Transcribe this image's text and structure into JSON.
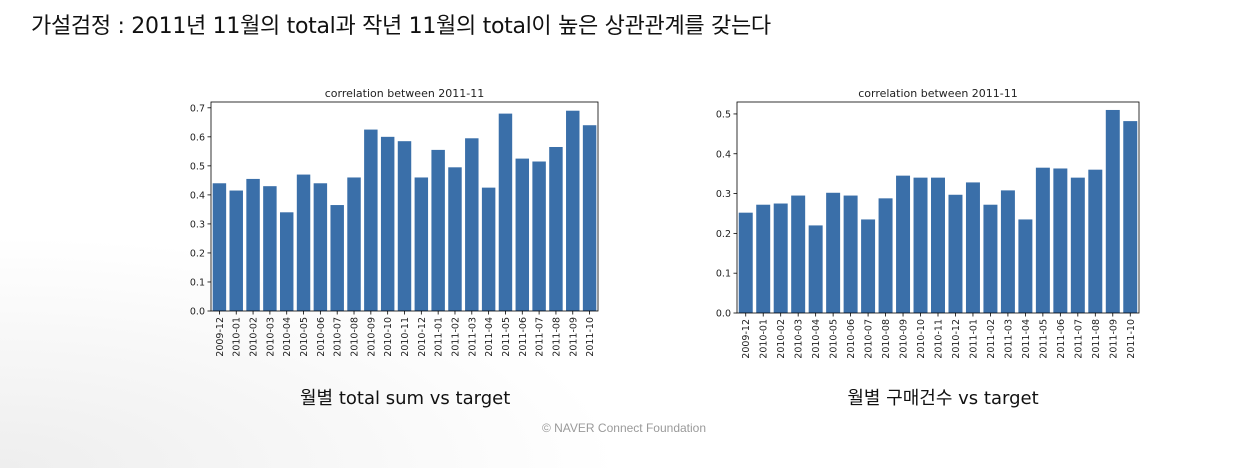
{
  "slide": {
    "heading": "가설검정 : 2011년 11월의 total과 작년 11월의 total이 높은 상관관계를 갖는다",
    "footer": "©  NAVER Connect Foundation"
  },
  "colors": {
    "bar": "#3a6fa9"
  },
  "chart_data": [
    {
      "type": "bar",
      "title": "correlation between 2011-11",
      "caption": "월별 total sum vs target",
      "xlabel": "",
      "ylabel": "",
      "grid": false,
      "ylim": [
        0,
        0.72
      ],
      "yticks": [
        "0.0",
        "0.1",
        "0.2",
        "0.3",
        "0.4",
        "0.5",
        "0.6",
        "0.7"
      ],
      "categories": [
        "2009-12",
        "2010-01",
        "2010-02",
        "2010-03",
        "2010-04",
        "2010-05",
        "2010-06",
        "2010-07",
        "2010-08",
        "2010-09",
        "2010-10",
        "2010-11",
        "2010-12",
        "2011-01",
        "2011-02",
        "2011-03",
        "2011-04",
        "2011-05",
        "2011-06",
        "2011-07",
        "2011-08",
        "2011-09",
        "2011-10"
      ],
      "values": [
        0.44,
        0.415,
        0.455,
        0.43,
        0.34,
        0.47,
        0.44,
        0.365,
        0.46,
        0.625,
        0.6,
        0.585,
        0.46,
        0.555,
        0.495,
        0.595,
        0.425,
        0.68,
        0.525,
        0.515,
        0.565,
        0.69,
        0.64
      ]
    },
    {
      "type": "bar",
      "title": "correlation between 2011-11",
      "caption": "월별 구매건수 vs target",
      "xlabel": "",
      "ylabel": "",
      "grid": false,
      "ylim": [
        0,
        0.53
      ],
      "yticks": [
        "0.0",
        "0.1",
        "0.2",
        "0.3",
        "0.4",
        "0.5"
      ],
      "categories": [
        "2009-12",
        "2010-01",
        "2010-02",
        "2010-03",
        "2010-04",
        "2010-05",
        "2010-06",
        "2010-07",
        "2010-08",
        "2010-09",
        "2010-10",
        "2010-11",
        "2010-12",
        "2011-01",
        "2011-02",
        "2011-03",
        "2011-04",
        "2011-05",
        "2011-06",
        "2011-07",
        "2011-08",
        "2011-09",
        "2011-10"
      ],
      "values": [
        0.252,
        0.272,
        0.275,
        0.295,
        0.22,
        0.302,
        0.295,
        0.235,
        0.288,
        0.345,
        0.34,
        0.34,
        0.297,
        0.328,
        0.272,
        0.308,
        0.235,
        0.365,
        0.363,
        0.34,
        0.36,
        0.51,
        0.482
      ]
    }
  ]
}
